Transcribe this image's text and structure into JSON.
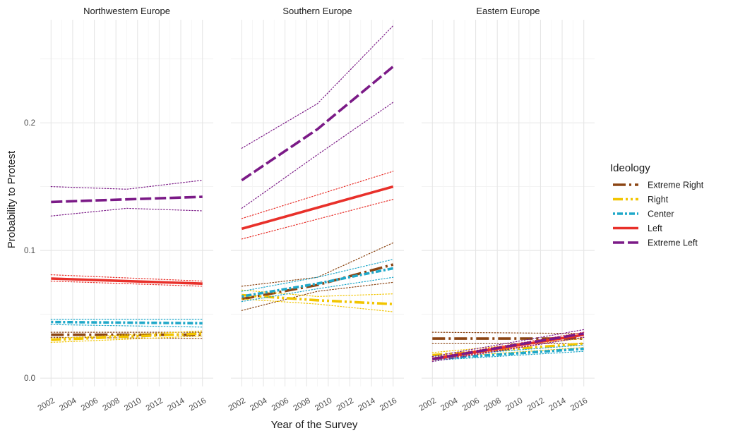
{
  "chart_data": {
    "type": "line",
    "xlabel": "Year of the Survey",
    "ylabel": "Probability to Protest",
    "x_ticks": [
      2002,
      2004,
      2006,
      2008,
      2010,
      2012,
      2014,
      2016
    ],
    "y_ticks": [
      "0.0",
      "0.1",
      "0.2"
    ],
    "xlim": [
      2001,
      2017
    ],
    "ylim": [
      -0.0065,
      0.2807
    ],
    "grid": true,
    "legend": {
      "title": "Ideology",
      "position": "right",
      "entries": [
        {
          "name": "Extreme Right",
          "color": "#8B4513",
          "dash": "longdash-dot"
        },
        {
          "name": "Right",
          "color": "#F2C500",
          "dash": "dash-dot-dot"
        },
        {
          "name": "Center",
          "color": "#1FA8C9",
          "dash": "dot-dash"
        },
        {
          "name": "Left",
          "color": "#E8302A",
          "dash": "solid"
        },
        {
          "name": "Extreme Left",
          "color": "#7B1A87",
          "dash": "dash-dot"
        }
      ]
    },
    "panels": [
      {
        "title": "Northwestern Europe",
        "series": [
          {
            "name": "Extreme Right",
            "x": [
              2002,
              2016
            ],
            "y": [
              0.034,
              0.034
            ],
            "ci_lower": [
              0.032,
              0.031
            ],
            "ci_upper": [
              0.036,
              0.036
            ]
          },
          {
            "name": "Right",
            "x": [
              2002,
              2016
            ],
            "y": [
              0.03,
              0.035
            ],
            "ci_lower": [
              0.028,
              0.033
            ],
            "ci_upper": [
              0.031,
              0.037
            ]
          },
          {
            "name": "Center",
            "x": [
              2002,
              2016
            ],
            "y": [
              0.044,
              0.043
            ],
            "ci_lower": [
              0.042,
              0.04
            ],
            "ci_upper": [
              0.046,
              0.046
            ]
          },
          {
            "name": "Left",
            "x": [
              2002,
              2016
            ],
            "y": [
              0.078,
              0.074
            ],
            "ci_lower": [
              0.076,
              0.072
            ],
            "ci_upper": [
              0.081,
              0.076
            ]
          },
          {
            "name": "Extreme Left",
            "x": [
              2002,
              2009,
              2016
            ],
            "y": [
              0.138,
              0.14,
              0.142
            ],
            "ci_lower": [
              0.127,
              0.133,
              0.131
            ],
            "ci_upper": [
              0.15,
              0.148,
              0.155
            ]
          }
        ]
      },
      {
        "title": "Southern Europe",
        "series": [
          {
            "name": "Extreme Right",
            "x": [
              2002,
              2009,
              2016
            ],
            "y": [
              0.062,
              0.073,
              0.089
            ],
            "ci_lower": [
              0.053,
              0.068,
              0.075
            ],
            "ci_upper": [
              0.072,
              0.079,
              0.106
            ]
          },
          {
            "name": "Right",
            "x": [
              2002,
              2009,
              2016
            ],
            "y": [
              0.065,
              0.061,
              0.058
            ],
            "ci_lower": [
              0.062,
              0.058,
              0.052
            ],
            "ci_upper": [
              0.069,
              0.064,
              0.066
            ]
          },
          {
            "name": "Center",
            "x": [
              2002,
              2009,
              2016
            ],
            "y": [
              0.064,
              0.074,
              0.086
            ],
            "ci_lower": [
              0.06,
              0.07,
              0.079
            ],
            "ci_upper": [
              0.068,
              0.079,
              0.093
            ]
          },
          {
            "name": "Left",
            "x": [
              2002,
              2016
            ],
            "y": [
              0.117,
              0.15
            ],
            "ci_lower": [
              0.109,
              0.14
            ],
            "ci_upper": [
              0.125,
              0.162
            ]
          },
          {
            "name": "Extreme Left",
            "x": [
              2002,
              2009,
              2016
            ],
            "y": [
              0.155,
              0.195,
              0.244
            ],
            "ci_lower": [
              0.133,
              0.175,
              0.216
            ],
            "ci_upper": [
              0.18,
              0.215,
              0.276
            ]
          }
        ]
      },
      {
        "title": "Eastern Europe",
        "series": [
          {
            "name": "Extreme Right",
            "x": [
              2002,
              2016
            ],
            "y": [
              0.031,
              0.031
            ],
            "ci_lower": [
              0.027,
              0.027
            ],
            "ci_upper": [
              0.036,
              0.035
            ]
          },
          {
            "name": "Right",
            "x": [
              2002,
              2016
            ],
            "y": [
              0.018,
              0.027
            ],
            "ci_lower": [
              0.016,
              0.024
            ],
            "ci_upper": [
              0.02,
              0.031
            ]
          },
          {
            "name": "Center",
            "x": [
              2002,
              2016
            ],
            "y": [
              0.015,
              0.023
            ],
            "ci_lower": [
              0.014,
              0.021
            ],
            "ci_upper": [
              0.017,
              0.026
            ]
          },
          {
            "name": "Left",
            "x": [
              2002,
              2016
            ],
            "y": [
              0.015,
              0.034
            ],
            "ci_lower": [
              0.014,
              0.032
            ],
            "ci_upper": [
              0.016,
              0.036
            ]
          },
          {
            "name": "Extreme Left",
            "x": [
              2002,
              2016
            ],
            "y": [
              0.015,
              0.035
            ],
            "ci_lower": [
              0.013,
              0.032
            ],
            "ci_upper": [
              0.017,
              0.038
            ]
          }
        ]
      }
    ]
  }
}
